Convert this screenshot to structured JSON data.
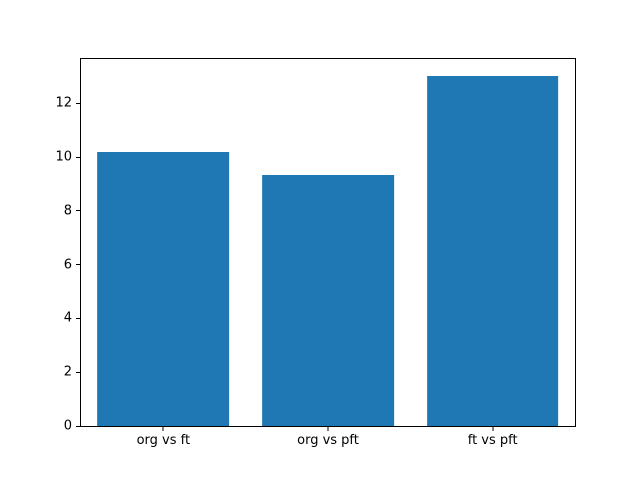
{
  "chart_data": {
    "type": "bar",
    "categories": [
      "org vs ft",
      "org vs pft",
      "ft vs pft"
    ],
    "values": [
      10.2,
      9.35,
      13.0
    ],
    "title": "",
    "xlabel": "",
    "ylabel": "",
    "ylim": [
      0,
      13.65
    ],
    "yticks": [
      0,
      2,
      4,
      6,
      8,
      10,
      12
    ],
    "bar_color": "#1f77b4",
    "bar_width_fraction": 0.8,
    "grid": false,
    "legend": null,
    "background_color": "#ffffff",
    "axis_color": "#000000"
  }
}
